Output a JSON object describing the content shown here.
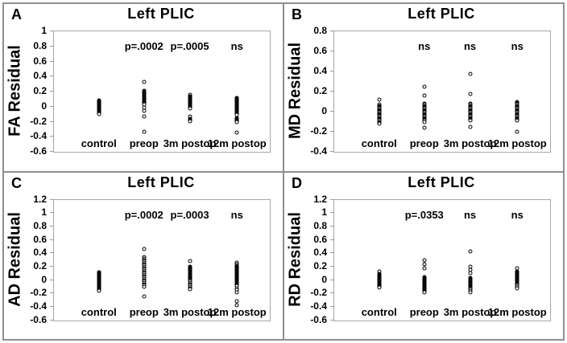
{
  "figure": {
    "background": "#ffffff",
    "frame_color": "#8f8f8f",
    "plot_border_color": "#a6a6a6",
    "marker_color": "#000000"
  },
  "chart_data": [
    {
      "type": "scatter",
      "panel_label": "A",
      "title": "Left PLIC",
      "ylabel": "FA Residual",
      "ylim": [
        -0.6,
        1.0
      ],
      "grid": false,
      "legend": null,
      "ytick_values": [
        1.0,
        0.8,
        0.6,
        0.4,
        0.2,
        0,
        -0.2,
        -0.4,
        -0.6
      ],
      "ytick_labels": [
        "1",
        "0.8",
        "0.6",
        "0.4",
        "0.2",
        "0",
        "-0.2",
        "-0.4",
        "-0.6"
      ],
      "categories": [
        "control",
        "preop",
        "3m postop",
        "12m postop"
      ],
      "annotations": [
        "",
        "p=.0002",
        "p=.0005",
        "ns"
      ],
      "series": [
        {
          "name": "control",
          "values": [
            0.08,
            0.07,
            0.06,
            0.06,
            0.05,
            0.05,
            0.04,
            0.04,
            0.03,
            0.03,
            0.02,
            0.02,
            0.01,
            0.01,
            0,
            0,
            -0.01,
            -0.01,
            -0.02,
            -0.02,
            -0.03,
            -0.03,
            -0.04,
            -0.04,
            -0.05,
            -0.06,
            -0.07,
            -0.08,
            -0.09,
            -0.1
          ]
        },
        {
          "name": "preop",
          "values": [
            0.33,
            0.21,
            0.2,
            0.19,
            0.18,
            0.17,
            0.16,
            0.15,
            0.14,
            0.13,
            0.12,
            0.11,
            0.1,
            0.09,
            0.08,
            0.07,
            0.06,
            0.05,
            0.04,
            0.03,
            -0.01,
            -0.06,
            -0.13,
            -0.33
          ]
        },
        {
          "name": "3m postop",
          "values": [
            0.16,
            0.14,
            0.13,
            0.12,
            0.11,
            0.1,
            0.09,
            0.08,
            0.07,
            0.06,
            0.05,
            0.04,
            0.03,
            0.02,
            0.01,
            0,
            -0.01,
            -0.02,
            -0.13,
            -0.16,
            -0.17,
            -0.18,
            -0.19
          ]
        },
        {
          "name": "12m postop",
          "values": [
            0.12,
            0.11,
            0.1,
            0.09,
            0.08,
            0.07,
            0.06,
            0.05,
            0.04,
            0.03,
            0.02,
            0.01,
            0,
            -0.01,
            -0.02,
            -0.03,
            -0.04,
            -0.05,
            -0.06,
            -0.07,
            -0.08,
            -0.09,
            -0.1,
            -0.11,
            -0.15,
            -0.16,
            -0.17,
            -0.18,
            -0.19,
            -0.2,
            -0.34
          ]
        }
      ]
    },
    {
      "type": "scatter",
      "panel_label": "B",
      "title": "Left PLIC",
      "ylabel": "MD Residual",
      "ylim": [
        -0.4,
        0.8
      ],
      "grid": false,
      "legend": null,
      "ytick_values": [
        0.8,
        0.6,
        0.4,
        0.2,
        0,
        -0.2,
        -0.4
      ],
      "ytick_labels": [
        "0.8",
        "0.6",
        "0.4",
        "0.2",
        "0",
        "-0.2",
        "-0.4"
      ],
      "categories": [
        "control",
        "preop",
        "3m postop",
        "12m postop"
      ],
      "annotations": [
        "",
        "ns",
        "ns",
        "ns"
      ],
      "series": [
        {
          "name": "control",
          "values": [
            0.12,
            0.07,
            0.06,
            0.06,
            0.05,
            0.05,
            0.04,
            0.04,
            0.03,
            0.03,
            0.02,
            0.02,
            0.01,
            0.01,
            0,
            0,
            -0.01,
            -0.01,
            -0.02,
            -0.02,
            -0.03,
            -0.03,
            -0.04,
            -0.04,
            -0.05,
            -0.06,
            -0.07,
            -0.08,
            -0.09,
            -0.1,
            -0.11,
            -0.12
          ]
        },
        {
          "name": "preop",
          "values": [
            0.25,
            0.16,
            0.08,
            0.07,
            0.06,
            0.05,
            0.04,
            0.03,
            0.02,
            0.01,
            0,
            -0.01,
            -0.02,
            -0.03,
            -0.04,
            -0.05,
            -0.06,
            -0.07,
            -0.08,
            -0.09,
            -0.1,
            -0.16
          ]
        },
        {
          "name": "3m postop",
          "values": [
            0.38,
            0.18,
            0.08,
            0.07,
            0.06,
            0.05,
            0.04,
            0.03,
            0.02,
            0.01,
            0,
            -0.01,
            -0.02,
            -0.03,
            -0.04,
            -0.05,
            -0.06,
            -0.07,
            -0.08,
            -0.09,
            -0.15
          ]
        },
        {
          "name": "12m postop",
          "values": [
            0.1,
            0.09,
            0.08,
            0.07,
            0.06,
            0.05,
            0.04,
            0.03,
            0.02,
            0.01,
            0,
            -0.01,
            -0.02,
            -0.03,
            -0.04,
            -0.05,
            -0.06,
            -0.07,
            -0.08,
            -0.09,
            -0.2
          ]
        }
      ]
    },
    {
      "type": "scatter",
      "panel_label": "C",
      "title": "Left PLIC",
      "ylabel": "AD Residual",
      "ylim": [
        -0.6,
        1.2
      ],
      "grid": false,
      "legend": null,
      "ytick_values": [
        1.2,
        1.0,
        0.8,
        0.6,
        0.4,
        0.2,
        0,
        -0.2,
        -0.4,
        -0.6
      ],
      "ytick_labels": [
        "1.2",
        "1",
        "0.8",
        "0.6",
        "0.4",
        "0.2",
        "0",
        "-0.2",
        "-0.4",
        "-0.6"
      ],
      "categories": [
        "control",
        "preop",
        "3m postop",
        "12m postop"
      ],
      "annotations": [
        "",
        "p=.0002",
        "p=.0003",
        "ns"
      ],
      "series": [
        {
          "name": "control",
          "values": [
            0.12,
            0.11,
            0.1,
            0.09,
            0.08,
            0.07,
            0.06,
            0.05,
            0.04,
            0.03,
            0.02,
            0.01,
            0,
            -0.01,
            -0.02,
            -0.03,
            -0.04,
            -0.05,
            -0.06,
            -0.07,
            -0.08,
            -0.09,
            -0.1,
            -0.11,
            -0.12,
            -0.13,
            -0.14,
            -0.15,
            -0.16
          ]
        },
        {
          "name": "preop",
          "values": [
            0.46,
            0.34,
            0.32,
            0.3,
            0.28,
            0.26,
            0.24,
            0.22,
            0.2,
            0.18,
            0.16,
            0.14,
            0.12,
            0.1,
            0.08,
            0.06,
            0.04,
            0.02,
            0,
            -0.02,
            -0.04,
            -0.06,
            -0.08,
            -0.1,
            -0.25
          ]
        },
        {
          "name": "3m postop",
          "values": [
            0.28,
            0.2,
            0.19,
            0.18,
            0.17,
            0.16,
            0.15,
            0.14,
            0.13,
            0.12,
            0.11,
            0.1,
            0.09,
            0.08,
            0.07,
            0.06,
            0.05,
            0.04,
            0.03,
            0.02,
            0.01,
            0,
            -0.01,
            -0.02,
            -0.04,
            -0.06,
            -0.08,
            -0.1,
            -0.12,
            -0.14
          ]
        },
        {
          "name": "12m postop",
          "values": [
            0.26,
            0.24,
            0.21,
            0.2,
            0.19,
            0.18,
            0.17,
            0.16,
            0.15,
            0.14,
            0.13,
            0.12,
            0.11,
            0.1,
            0.09,
            0.08,
            0.07,
            0.06,
            0.05,
            0.04,
            0.03,
            0.02,
            0.01,
            0,
            -0.01,
            -0.02,
            -0.03,
            -0.04,
            -0.05,
            -0.06,
            -0.07,
            -0.08,
            -0.09,
            -0.12,
            -0.15,
            -0.19,
            -0.32,
            -0.38
          ]
        }
      ]
    },
    {
      "type": "scatter",
      "panel_label": "D",
      "title": "Left PLIC",
      "ylabel": "RD Residual",
      "ylim": [
        -0.6,
        1.2
      ],
      "grid": false,
      "legend": null,
      "ytick_values": [
        1.2,
        1.0,
        0.8,
        0.6,
        0.4,
        0.2,
        0,
        -0.2,
        -0.4,
        -0.6
      ],
      "ytick_labels": [
        "1.2",
        "1",
        "0.8",
        "0.6",
        "0.4",
        "0.2",
        "0",
        "-0.2",
        "-0.4",
        "-0.6"
      ],
      "categories": [
        "control",
        "preop",
        "3m postop",
        "12m postop"
      ],
      "annotations": [
        "",
        "p=.0353",
        "ns",
        "ns"
      ],
      "series": [
        {
          "name": "control",
          "values": [
            0.13,
            0.09,
            0.08,
            0.07,
            0.06,
            0.05,
            0.04,
            0.04,
            0.03,
            0.03,
            0.02,
            0.02,
            0.01,
            0.01,
            0,
            0,
            -0.01,
            -0.01,
            -0.02,
            -0.03,
            -0.04,
            -0.05,
            -0.06,
            -0.07,
            -0.08,
            -0.09,
            -0.1,
            -0.11
          ]
        },
        {
          "name": "preop",
          "values": [
            0.3,
            0.24,
            0.17,
            0.04,
            0.03,
            0.02,
            0.01,
            0,
            -0.01,
            -0.02,
            -0.03,
            -0.04,
            -0.05,
            -0.06,
            -0.07,
            -0.08,
            -0.09,
            -0.1,
            -0.11,
            -0.12,
            -0.13,
            -0.14,
            -0.15,
            -0.16,
            -0.17,
            -0.19
          ]
        },
        {
          "name": "3m postop",
          "values": [
            0.43,
            0.2,
            0.15,
            0.1,
            0.03,
            0.02,
            0.01,
            0,
            -0.01,
            -0.02,
            -0.03,
            -0.04,
            -0.05,
            -0.06,
            -0.07,
            -0.08,
            -0.09,
            -0.1,
            -0.11,
            -0.12,
            -0.13,
            -0.14,
            -0.16,
            -0.18
          ]
        },
        {
          "name": "12m postop",
          "values": [
            0.17,
            0.13,
            0.12,
            0.11,
            0.1,
            0.09,
            0.08,
            0.07,
            0.06,
            0.05,
            0.04,
            0.03,
            0.02,
            0.01,
            0,
            -0.01,
            -0.02,
            -0.03,
            -0.04,
            -0.05,
            -0.06,
            -0.08,
            -0.1,
            -0.12
          ]
        }
      ]
    }
  ]
}
